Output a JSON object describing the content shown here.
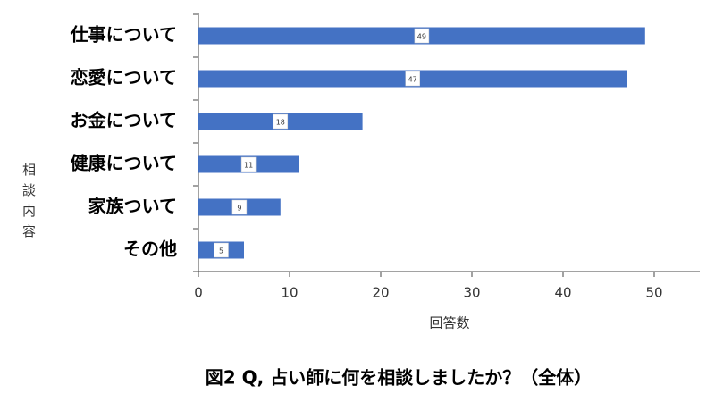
{
  "chart_data": {
    "type": "bar",
    "orientation": "horizontal",
    "title": "図2 Q, 占い師に何を相談しましたか？（全体）",
    "x_label": "回答数",
    "y_label": "相談内容",
    "categories": [
      "仕事について",
      "恋愛について",
      "お金について",
      "健康について",
      "家族ついて",
      "その他"
    ],
    "values": [
      49,
      47,
      18,
      11,
      9,
      5
    ],
    "color": "#4472c4",
    "xlim": [
      0,
      55
    ],
    "xticks": [
      0,
      10,
      20,
      30,
      40,
      50
    ],
    "grid": false
  }
}
